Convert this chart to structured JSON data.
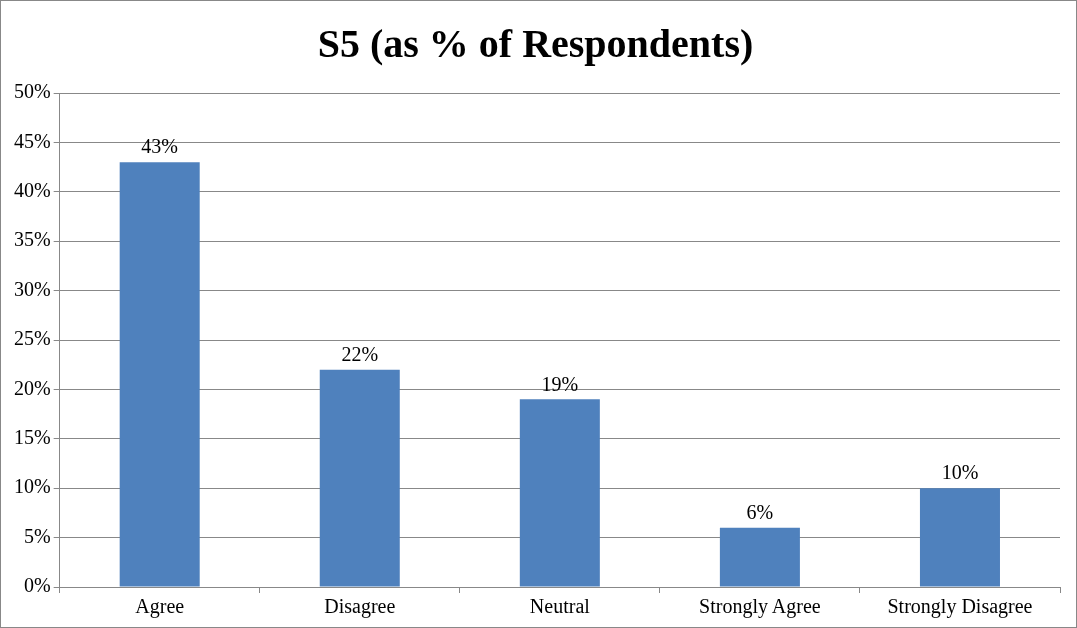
{
  "chart_data": {
    "type": "bar",
    "title": "S5 (as % of Respondents)",
    "categories": [
      "Agree",
      "Disagree",
      "Neutral",
      "Strongly Agree",
      "Strongly Disagree"
    ],
    "values": [
      43,
      22,
      19,
      6,
      10
    ],
    "value_labels": [
      "43%",
      "22%",
      "19%",
      "6%",
      "10%"
    ],
    "color": "#4f81bd",
    "ylim": [
      0,
      50
    ],
    "yticks": [
      {
        "value": 0,
        "label": "0%"
      },
      {
        "value": 5,
        "label": "5%"
      },
      {
        "value": 10,
        "label": "10%"
      },
      {
        "value": 15,
        "label": "15%"
      },
      {
        "value": 20,
        "label": "20%"
      },
      {
        "value": 25,
        "label": "25%"
      },
      {
        "value": 30,
        "label": "30%"
      },
      {
        "value": 35,
        "label": "35%"
      },
      {
        "value": 40,
        "label": "40%"
      },
      {
        "value": 45,
        "label": "45%"
      },
      {
        "value": 50,
        "label": "50%"
      }
    ],
    "grid": "y"
  }
}
